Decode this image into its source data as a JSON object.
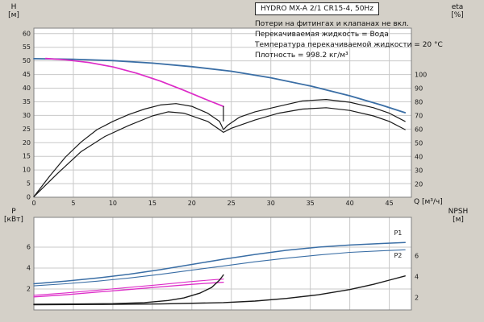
{
  "window": {
    "title": "HYDRO MX-A 2/1 CR15-4, 50Hz"
  },
  "notes": [
    "Потери на фитингах и клапанах не вкл.",
    "Перекачиваемая жидкость = Вода",
    "Температура перекачиваемой жидкости = 20 °C",
    "Плотность = 998.2 кг/м³"
  ],
  "labels": {
    "h": [
      "H",
      "[м]"
    ],
    "eta": [
      "eta",
      "[%]"
    ],
    "q": "Q [м³/ч]",
    "p": [
      "P",
      "[кВт]"
    ],
    "npsh": [
      "NPSH",
      "[м]"
    ]
  },
  "colors": {
    "background": "#d4d0c8",
    "plot": "#ffffff",
    "grid": "#c8c8c8",
    "border": "#7f7f7f",
    "blue": "#3a6ea5",
    "magenta": "#dd2cc8",
    "black": "#1a1a1a"
  },
  "chart_data": [
    {
      "id": "top",
      "type": "line",
      "title": "HYDRO MX-A 2/1 CR15-4, 50Hz",
      "x_axis": {
        "label": "Q [м³/ч]",
        "min": 0,
        "max": 47.8,
        "ticks": [
          0,
          5,
          10,
          15,
          20,
          25,
          30,
          35,
          40,
          45
        ],
        "show_labels": true
      },
      "y_left": {
        "label": "H [м]",
        "min": 0,
        "max": 62,
        "ticks": [
          0,
          5,
          10,
          15,
          20,
          25,
          30,
          35,
          40,
          45,
          50,
          55,
          60
        ]
      },
      "y_right": {
        "label": "eta [%]",
        "min": 10.6,
        "max": 134.1,
        "ticks": [
          20,
          30,
          40,
          50,
          60,
          70,
          80,
          90,
          100
        ]
      },
      "series": [
        {
          "name": "head-curve-two-pumps",
          "color": "#3a6ea5",
          "width": 1.8,
          "axis": "left",
          "points": [
            [
              0,
              50.8
            ],
            [
              5,
              50.6
            ],
            [
              10,
              50.1
            ],
            [
              15,
              49.2
            ],
            [
              20,
              47.9
            ],
            [
              25,
              46.2
            ],
            [
              30,
              43.8
            ],
            [
              35,
              40.8
            ],
            [
              40,
              37.2
            ],
            [
              44,
              33.8
            ],
            [
              47,
              31
            ]
          ]
        },
        {
          "name": "head-curve-one-pump",
          "color": "#dd2cc8",
          "width": 1.7,
          "axis": "left",
          "points": [
            [
              1.5,
              50.9
            ],
            [
              4,
              50.4
            ],
            [
              7,
              49.4
            ],
            [
              10,
              47.8
            ],
            [
              13,
              45.5
            ],
            [
              16,
              42.6
            ],
            [
              19,
              39.2
            ],
            [
              22,
              35.6
            ],
            [
              24,
              33.3
            ]
          ]
        },
        {
          "name": "duty-range-end-tick",
          "color": "#1a1a1a",
          "width": 1.2,
          "axis": "left",
          "points": [
            [
              24,
              33.3
            ],
            [
              24,
              28
            ]
          ]
        },
        {
          "name": "eta-curve-a",
          "color": "#1a1a1a",
          "width": 1.2,
          "axis": "right",
          "points": [
            [
              0,
              11
            ],
            [
              2,
              26
            ],
            [
              4,
              40
            ],
            [
              6,
              51
            ],
            [
              8,
              60
            ],
            [
              10,
              66
            ],
            [
              12,
              71
            ],
            [
              14,
              75
            ],
            [
              16,
              78
            ],
            [
              18,
              79
            ],
            [
              20,
              77
            ],
            [
              22,
              72
            ],
            [
              23.5,
              66
            ],
            [
              24,
              60
            ],
            [
              24.5,
              63
            ],
            [
              26,
              69
            ],
            [
              28,
              73
            ],
            [
              31,
              77
            ],
            [
              34,
              81
            ],
            [
              37,
              82
            ],
            [
              40,
              80
            ],
            [
              43,
              76
            ],
            [
              45,
              72
            ],
            [
              47,
              66
            ]
          ]
        },
        {
          "name": "eta-curve-b",
          "color": "#1a1a1a",
          "width": 1.2,
          "axis": "right",
          "points": [
            [
              0,
              11
            ],
            [
              3,
              28
            ],
            [
              6,
              44
            ],
            [
              9,
              55
            ],
            [
              12,
              63
            ],
            [
              15,
              70
            ],
            [
              17,
              73
            ],
            [
              19,
              72
            ],
            [
              22,
              66
            ],
            [
              24,
              58
            ],
            [
              25,
              61
            ],
            [
              28,
              67
            ],
            [
              31,
              72
            ],
            [
              34,
              75
            ],
            [
              37,
              76
            ],
            [
              40,
              74
            ],
            [
              43,
              70
            ],
            [
              45,
              66
            ],
            [
              47,
              60
            ]
          ]
        }
      ],
      "annotations": []
    },
    {
      "id": "bottom",
      "type": "line",
      "x_axis": {
        "label": "",
        "min": 0,
        "max": 47.8,
        "ticks": [
          0,
          5,
          10,
          15,
          20,
          25,
          30,
          35,
          40,
          45
        ],
        "show_labels": false
      },
      "y_left": {
        "label": "P [кВт]",
        "min": 0,
        "max": 8.85,
        "ticks": [
          2,
          4,
          6
        ]
      },
      "y_right": {
        "label": "NPSH [м]",
        "min": 0.85,
        "max": 9.7,
        "ticks": [
          2,
          4,
          6
        ]
      },
      "series": [
        {
          "name": "power-p1",
          "color": "#3a6ea5",
          "width": 1.5,
          "axis": "left",
          "points": [
            [
              0,
              2.5
            ],
            [
              4,
              2.75
            ],
            [
              8,
              3.05
            ],
            [
              12,
              3.4
            ],
            [
              16,
              3.85
            ],
            [
              20,
              4.35
            ],
            [
              24,
              4.85
            ],
            [
              28,
              5.3
            ],
            [
              32,
              5.7
            ],
            [
              36,
              6.0
            ],
            [
              40,
              6.2
            ],
            [
              44,
              6.35
            ],
            [
              47,
              6.45
            ]
          ]
        },
        {
          "name": "power-p2",
          "color": "#3a6ea5",
          "width": 1.1,
          "axis": "left",
          "points": [
            [
              0,
              2.3
            ],
            [
              4,
              2.5
            ],
            [
              8,
              2.75
            ],
            [
              12,
              3.05
            ],
            [
              16,
              3.4
            ],
            [
              20,
              3.8
            ],
            [
              24,
              4.2
            ],
            [
              28,
              4.6
            ],
            [
              32,
              4.95
            ],
            [
              36,
              5.25
            ],
            [
              40,
              5.5
            ],
            [
              44,
              5.65
            ],
            [
              47,
              5.75
            ]
          ]
        },
        {
          "name": "power-one-pump-a",
          "color": "#dd2cc8",
          "width": 1.3,
          "axis": "left",
          "points": [
            [
              0,
              1.25
            ],
            [
              4,
              1.45
            ],
            [
              8,
              1.7
            ],
            [
              12,
              1.95
            ],
            [
              16,
              2.2
            ],
            [
              20,
              2.45
            ],
            [
              23,
              2.6
            ],
            [
              24,
              2.65
            ]
          ]
        },
        {
          "name": "power-one-pump-b",
          "color": "#dd2cc8",
          "width": 1.1,
          "axis": "left",
          "points": [
            [
              0,
              1.4
            ],
            [
              4,
              1.62
            ],
            [
              8,
              1.88
            ],
            [
              12,
              2.15
            ],
            [
              16,
              2.42
            ],
            [
              20,
              2.72
            ],
            [
              23,
              2.9
            ],
            [
              24,
              2.95
            ]
          ]
        },
        {
          "name": "npsh-one-pump",
          "color": "#1a1a1a",
          "width": 1.4,
          "axis": "right",
          "points": [
            [
              0,
              1.4
            ],
            [
              6,
              1.42
            ],
            [
              10,
              1.45
            ],
            [
              14,
              1.55
            ],
            [
              17,
              1.75
            ],
            [
              19,
              2.0
            ],
            [
              21,
              2.45
            ],
            [
              22.5,
              3.0
            ],
            [
              23.5,
              3.7
            ],
            [
              24,
              4.2
            ]
          ]
        },
        {
          "name": "npsh-two-pumps",
          "color": "#1a1a1a",
          "width": 1.4,
          "axis": "right",
          "points": [
            [
              0,
              1.35
            ],
            [
              8,
              1.37
            ],
            [
              16,
              1.42
            ],
            [
              24,
              1.55
            ],
            [
              28,
              1.7
            ],
            [
              32,
              1.95
            ],
            [
              36,
              2.3
            ],
            [
              40,
              2.8
            ],
            [
              43,
              3.3
            ],
            [
              45,
              3.7
            ],
            [
              47,
              4.1
            ]
          ]
        }
      ],
      "annotations": [
        {
          "text": "P1",
          "x": 45.6,
          "y": 7.15,
          "axis": "left",
          "color": "#3a6ea5"
        },
        {
          "text": "P2",
          "x": 45.6,
          "y": 5.0,
          "axis": "left",
          "color": "#3a6ea5"
        }
      ]
    }
  ]
}
